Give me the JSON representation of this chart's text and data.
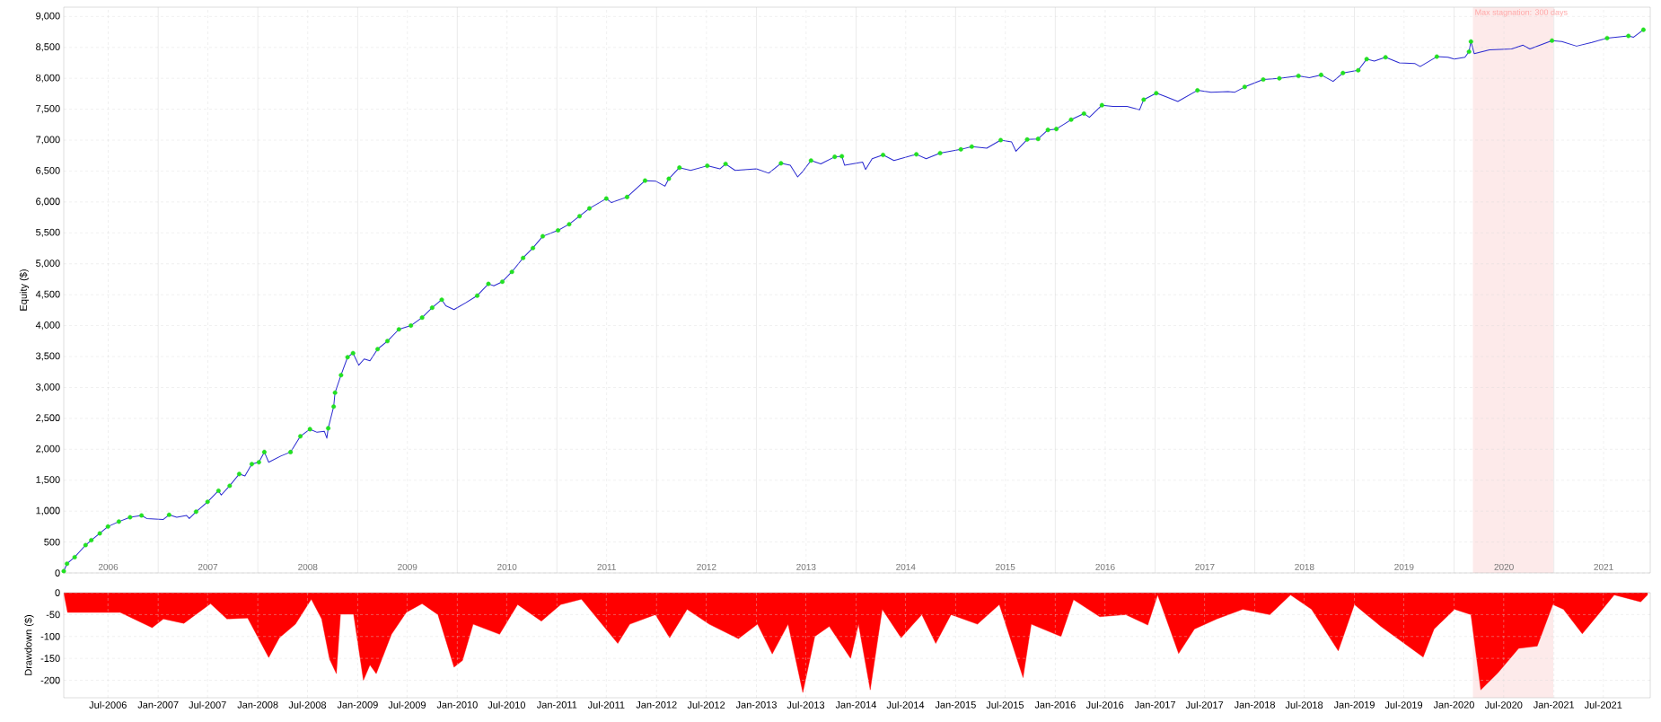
{
  "chart_data": [
    {
      "type": "line",
      "ylabel": "Equity ($)",
      "grid": true,
      "xlim": [
        "2006-01-20",
        "2021-12-20"
      ],
      "ylim": [
        0,
        9150
      ],
      "xticks": [
        {
          "value": "2006-07-02",
          "label": "2006"
        },
        {
          "value": "2007-07-02",
          "label": "2007"
        },
        {
          "value": "2008-07-02",
          "label": "2008"
        },
        {
          "value": "2009-07-02",
          "label": "2009"
        },
        {
          "value": "2010-07-02",
          "label": "2010"
        },
        {
          "value": "2011-07-02",
          "label": "2011"
        },
        {
          "value": "2012-07-02",
          "label": "2012"
        },
        {
          "value": "2013-07-02",
          "label": "2013"
        },
        {
          "value": "2014-07-02",
          "label": "2014"
        },
        {
          "value": "2015-07-02",
          "label": "2015"
        },
        {
          "value": "2016-07-02",
          "label": "2016"
        },
        {
          "value": "2017-07-02",
          "label": "2017"
        },
        {
          "value": "2018-07-02",
          "label": "2018"
        },
        {
          "value": "2019-07-02",
          "label": "2019"
        },
        {
          "value": "2020-07-02",
          "label": "2020"
        },
        {
          "value": "2021-07-02",
          "label": "2021"
        },
        {
          "value": "2007-01-01",
          "label": null
        },
        {
          "value": "2008-01-01",
          "label": null
        },
        {
          "value": "2009-01-01",
          "label": null
        },
        {
          "value": "2010-01-01",
          "label": null
        },
        {
          "value": "2011-01-01",
          "label": null
        },
        {
          "value": "2012-01-01",
          "label": null
        },
        {
          "value": "2013-01-01",
          "label": null
        },
        {
          "value": "2014-01-01",
          "label": null
        },
        {
          "value": "2015-01-01",
          "label": null
        },
        {
          "value": "2016-01-01",
          "label": null
        },
        {
          "value": "2017-01-01",
          "label": null
        },
        {
          "value": "2018-01-01",
          "label": null
        },
        {
          "value": "2019-01-01",
          "label": null
        },
        {
          "value": "2020-01-01",
          "label": null
        },
        {
          "value": "2021-01-01",
          "label": null
        }
      ],
      "yticks": [
        0,
        500,
        {
          "value": 1000,
          "label": "1,000"
        },
        {
          "value": 1500,
          "label": "1,500"
        },
        {
          "value": 2000,
          "label": "2,000"
        },
        {
          "value": 2500,
          "label": "2,500"
        },
        {
          "value": 3000,
          "label": "3,000"
        },
        {
          "value": 3500,
          "label": "3,500"
        },
        {
          "value": 4000,
          "label": "4,000"
        },
        {
          "value": 4500,
          "label": "4,500"
        },
        {
          "value": 5000,
          "label": "5,000"
        },
        {
          "value": 5500,
          "label": "5,500"
        },
        {
          "value": 6000,
          "label": "6,000"
        },
        {
          "value": 6500,
          "label": "6,500"
        },
        {
          "value": 7000,
          "label": "7,000"
        },
        {
          "value": 7500,
          "label": "7,500"
        },
        {
          "value": 8000,
          "label": "8,000"
        },
        {
          "value": 8500,
          "label": "8,500"
        },
        {
          "value": 9000,
          "label": "9,000"
        }
      ],
      "bands": [
        {
          "axis": "x",
          "from": "2020-03-10",
          "to": "2020-12-30",
          "label": "Max stagnation: 300 days",
          "color": "#fdeaea"
        }
      ],
      "series": [
        {
          "color": "#2a2ad0",
          "x": [
            "2006-01-20",
            "2006-02-01",
            "2006-03-01",
            "2006-04-10",
            "2006-05-01",
            "2006-06-01",
            "2006-07-01",
            "2006-08-10",
            "2006-09-20",
            "2006-11-01",
            "2006-11-20",
            "2007-01-20",
            "2007-02-10",
            "2007-03-10",
            "2007-04-15",
            "2007-04-25",
            "2007-05-20",
            "2007-07-01",
            "2007-08-10",
            "2007-08-20",
            "2007-09-20",
            "2007-10-25",
            "2007-11-15",
            "2007-12-10",
            "2008-01-05",
            "2008-01-25",
            "2008-02-10",
            "2008-03-25",
            "2008-04-30",
            "2008-06-05",
            "2008-07-10",
            "2008-08-05",
            "2008-09-01",
            "2008-09-10",
            "2008-09-15",
            "2008-10-05",
            "2008-10-10",
            "2008-11-01",
            "2008-11-25",
            "2008-12-15",
            "2009-01-05",
            "2009-01-25",
            "2009-02-15",
            "2009-03-15",
            "2009-04-20",
            "2009-06-01",
            "2009-07-15",
            "2009-08-25",
            "2009-10-01",
            "2009-11-05",
            "2009-11-20",
            "2009-12-20",
            "2010-02-01",
            "2010-03-15",
            "2010-04-25",
            "2010-05-15",
            "2010-06-15",
            "2010-07-20",
            "2010-08-30",
            "2010-10-05",
            "2010-11-10",
            "2011-01-05",
            "2011-02-15",
            "2011-03-25",
            "2011-04-30",
            "2011-07-01",
            "2011-07-20",
            "2011-08-08",
            "2011-09-15",
            "2011-11-20",
            "2011-12-30",
            "2012-02-01",
            "2012-02-15",
            "2012-03-25",
            "2012-05-05",
            "2012-07-05",
            "2012-08-20",
            "2012-09-10",
            "2012-10-15",
            "2013-01-01",
            "2013-02-15",
            "2013-04-01",
            "2013-05-05",
            "2013-06-01",
            "2013-06-20",
            "2013-07-20",
            "2013-08-25",
            "2013-10-15",
            "2013-11-10",
            "2013-11-20",
            "2014-01-25",
            "2014-02-05",
            "2014-03-01",
            "2014-04-10",
            "2014-05-20",
            "2014-08-10",
            "2014-09-15",
            "2014-11-05",
            "2015-01-20",
            "2015-03-01",
            "2015-04-25",
            "2015-06-15",
            "2015-07-25",
            "2015-08-10",
            "2015-09-20",
            "2015-10-30",
            "2015-12-05",
            "2016-01-05",
            "2016-02-28",
            "2016-04-15",
            "2016-05-05",
            "2016-06-20",
            "2016-07-30",
            "2016-09-20",
            "2016-11-05",
            "2016-11-20",
            "2017-01-05",
            "2017-01-15",
            "2017-02-10",
            "2017-03-25",
            "2017-06-05",
            "2017-07-25",
            "2017-09-25",
            "2017-10-20",
            "2017-11-25",
            "2018-02-01",
            "2018-04-01",
            "2018-06-10",
            "2018-07-20",
            "2018-09-01",
            "2018-10-15",
            "2018-11-20",
            "2019-01-15",
            "2019-02-15",
            "2019-03-15",
            "2019-04-25",
            "2019-06-15",
            "2019-08-10",
            "2019-08-30",
            "2019-10-30",
            "2019-12-10",
            "2020-01-02",
            "2020-02-10",
            "2020-02-25",
            "2020-03-03",
            "2020-03-15",
            "2020-05-10",
            "2020-07-30",
            "2020-09-10",
            "2020-10-05",
            "2020-12-25",
            "2021-01-30",
            "2021-03-25",
            "2021-05-20",
            "2021-07-15",
            "2021-10-01",
            "2021-10-20",
            "2021-11-25"
          ],
          "values": [
            30,
            150,
            255,
            450,
            530,
            640,
            750,
            830,
            900,
            930,
            880,
            865,
            940,
            900,
            930,
            880,
            990,
            1150,
            1330,
            1260,
            1410,
            1600,
            1570,
            1760,
            1790,
            1955,
            1790,
            1890,
            1955,
            2210,
            2325,
            2275,
            2290,
            2180,
            2340,
            2690,
            2915,
            3200,
            3490,
            3555,
            3360,
            3460,
            3430,
            3620,
            3750,
            3940,
            4000,
            4130,
            4290,
            4420,
            4320,
            4260,
            4370,
            4485,
            4675,
            4645,
            4710,
            4870,
            5095,
            5255,
            5445,
            5540,
            5640,
            5770,
            5895,
            6055,
            5990,
            6020,
            6080,
            6345,
            6335,
            6255,
            6375,
            6555,
            6510,
            6585,
            6535,
            6615,
            6510,
            6535,
            6465,
            6625,
            6595,
            6405,
            6495,
            6670,
            6615,
            6730,
            6740,
            6595,
            6645,
            6525,
            6700,
            6760,
            6670,
            6770,
            6700,
            6790,
            6850,
            6895,
            6870,
            7000,
            6970,
            6820,
            7010,
            7020,
            7165,
            7180,
            7330,
            7430,
            7370,
            7565,
            7545,
            7545,
            7490,
            7655,
            7760,
            7745,
            7700,
            7625,
            7805,
            7775,
            7785,
            7775,
            7860,
            7980,
            8000,
            8040,
            8010,
            8055,
            7950,
            8085,
            8130,
            8310,
            8280,
            8340,
            8250,
            8240,
            8190,
            8350,
            8340,
            8310,
            8340,
            8430,
            8595,
            8400,
            8460,
            8475,
            8535,
            8475,
            8610,
            8595,
            8520,
            8580,
            8650,
            8685,
            8665,
            8785
          ]
        },
        {
          "type": "scatter",
          "marker": "circle",
          "color": "#22e022",
          "x": [
            "2006-01-20",
            "2006-02-01",
            "2006-03-01",
            "2006-04-10",
            "2006-05-01",
            "2006-06-01",
            "2006-07-01",
            "2006-08-10",
            "2006-09-20",
            "2006-11-01",
            "2007-02-10",
            "2007-05-20",
            "2007-07-01",
            "2007-08-10",
            "2007-09-20",
            "2007-10-25",
            "2007-12-10",
            "2008-01-05",
            "2008-01-25",
            "2008-04-30",
            "2008-06-05",
            "2008-07-10",
            "2008-09-15",
            "2008-10-05",
            "2008-10-10",
            "2008-11-01",
            "2008-11-25",
            "2008-12-15",
            "2009-03-15",
            "2009-04-20",
            "2009-06-01",
            "2009-07-15",
            "2009-08-25",
            "2009-10-01",
            "2009-11-05",
            "2010-03-15",
            "2010-04-25",
            "2010-06-15",
            "2010-07-20",
            "2010-08-30",
            "2010-10-05",
            "2010-11-10",
            "2011-01-05",
            "2011-02-15",
            "2011-03-25",
            "2011-04-30",
            "2011-07-01",
            "2011-09-15",
            "2011-11-20",
            "2012-02-15",
            "2012-03-25",
            "2012-07-05",
            "2012-09-10",
            "2013-04-01",
            "2013-07-20",
            "2013-10-15",
            "2013-11-10",
            "2014-04-10",
            "2014-08-10",
            "2014-11-05",
            "2015-01-20",
            "2015-03-01",
            "2015-06-15",
            "2015-09-20",
            "2015-10-30",
            "2015-12-05",
            "2016-01-05",
            "2016-02-28",
            "2016-04-15",
            "2016-06-20",
            "2016-11-20",
            "2017-01-05",
            "2017-06-05",
            "2017-11-25",
            "2018-02-01",
            "2018-04-01",
            "2018-06-10",
            "2018-09-01",
            "2018-11-20",
            "2019-01-15",
            "2019-02-15",
            "2019-04-25",
            "2019-10-30",
            "2020-02-25",
            "2020-03-03",
            "2020-12-25",
            "2021-07-15",
            "2021-10-01",
            "2021-11-25"
          ],
          "values": [
            30,
            150,
            255,
            450,
            530,
            640,
            750,
            830,
            900,
            930,
            940,
            990,
            1150,
            1330,
            1410,
            1600,
            1760,
            1790,
            1955,
            1955,
            2210,
            2325,
            2340,
            2690,
            2915,
            3200,
            3490,
            3555,
            3620,
            3750,
            3940,
            4000,
            4130,
            4290,
            4420,
            4485,
            4675,
            4710,
            4870,
            5095,
            5255,
            5445,
            5540,
            5640,
            5770,
            5895,
            6055,
            6080,
            6345,
            6375,
            6555,
            6585,
            6615,
            6625,
            6670,
            6730,
            6740,
            6760,
            6770,
            6790,
            6850,
            6895,
            7000,
            7010,
            7020,
            7165,
            7180,
            7330,
            7430,
            7565,
            7655,
            7760,
            7805,
            7860,
            7980,
            8000,
            8040,
            8055,
            8085,
            8130,
            8310,
            8340,
            8350,
            8430,
            8595,
            8610,
            8650,
            8685,
            8785
          ]
        }
      ]
    },
    {
      "type": "area",
      "ylabel": "Drawdown ($)",
      "grid": true,
      "xlim": [
        "2006-01-20",
        "2021-12-20"
      ],
      "ylim": [
        -240,
        0
      ],
      "xticks": [
        {
          "value": "2006-07-01",
          "label": "Jul-2006"
        },
        {
          "value": "2007-01-01",
          "label": "Jan-2007"
        },
        {
          "value": "2007-07-01",
          "label": "Jul-2007"
        },
        {
          "value": "2008-01-01",
          "label": "Jan-2008"
        },
        {
          "value": "2008-07-01",
          "label": "Jul-2008"
        },
        {
          "value": "2009-01-01",
          "label": "Jan-2009"
        },
        {
          "value": "2009-07-01",
          "label": "Jul-2009"
        },
        {
          "value": "2010-01-01",
          "label": "Jan-2010"
        },
        {
          "value": "2010-07-01",
          "label": "Jul-2010"
        },
        {
          "value": "2011-01-01",
          "label": "Jan-2011"
        },
        {
          "value": "2011-07-01",
          "label": "Jul-2011"
        },
        {
          "value": "2012-01-01",
          "label": "Jan-2012"
        },
        {
          "value": "2012-07-01",
          "label": "Jul-2012"
        },
        {
          "value": "2013-01-01",
          "label": "Jan-2013"
        },
        {
          "value": "2013-07-01",
          "label": "Jul-2013"
        },
        {
          "value": "2014-01-01",
          "label": "Jan-2014"
        },
        {
          "value": "2014-07-01",
          "label": "Jul-2014"
        },
        {
          "value": "2015-01-01",
          "label": "Jan-2015"
        },
        {
          "value": "2015-07-01",
          "label": "Jul-2015"
        },
        {
          "value": "2016-01-01",
          "label": "Jan-2016"
        },
        {
          "value": "2016-07-01",
          "label": "Jul-2016"
        },
        {
          "value": "2017-01-01",
          "label": "Jan-2017"
        },
        {
          "value": "2017-07-01",
          "label": "Jul-2017"
        },
        {
          "value": "2018-01-01",
          "label": "Jan-2018"
        },
        {
          "value": "2018-07-01",
          "label": "Jul-2018"
        },
        {
          "value": "2019-01-01",
          "label": "Jan-2019"
        },
        {
          "value": "2019-07-01",
          "label": "Jul-2019"
        },
        {
          "value": "2020-01-01",
          "label": "Jan-2020"
        },
        {
          "value": "2020-07-01",
          "label": "Jul-2020"
        },
        {
          "value": "2021-01-01",
          "label": "Jan-2021"
        },
        {
          "value": "2021-07-01",
          "label": "Jul-2021"
        }
      ],
      "yticks": [
        -200,
        -150,
        -100,
        -50,
        0
      ],
      "bands": [
        {
          "axis": "x",
          "from": "2020-03-10",
          "to": "2020-12-30",
          "color": "#fdeaea"
        }
      ],
      "series": [
        {
          "color": "#ff0000",
          "x": [
            "2006-01-20",
            "2006-02-03",
            "2006-08-15",
            "2006-12-10",
            "2007-01-20",
            "2007-04-05",
            "2007-07-12",
            "2007-09-10",
            "2007-11-25",
            "2008-02-10",
            "2008-03-20",
            "2008-05-18",
            "2008-07-15",
            "2008-08-22",
            "2008-09-20",
            "2008-10-15",
            "2008-10-30",
            "2008-12-17",
            "2009-01-22",
            "2009-02-15",
            "2009-03-10",
            "2009-05-05",
            "2009-06-28",
            "2009-08-25",
            "2009-10-22",
            "2009-12-20",
            "2010-01-20",
            "2010-02-28",
            "2010-06-05",
            "2010-08-10",
            "2010-11-05",
            "2011-01-15",
            "2011-04-01",
            "2011-08-12",
            "2011-09-25",
            "2011-12-28",
            "2012-02-18",
            "2012-04-22",
            "2012-07-12",
            "2012-10-27",
            "2013-01-05",
            "2013-02-28",
            "2013-04-27",
            "2013-06-20",
            "2013-08-03",
            "2013-09-25",
            "2013-12-12",
            "2014-01-10",
            "2014-02-22",
            "2014-04-07",
            "2014-06-15",
            "2014-08-30",
            "2014-10-20",
            "2014-12-15",
            "2015-03-22",
            "2015-06-10",
            "2015-09-05",
            "2015-10-05",
            "2016-01-22",
            "2016-03-08",
            "2016-06-12",
            "2016-09-15",
            "2016-12-05",
            "2017-01-10",
            "2017-03-28",
            "2017-05-25",
            "2017-08-15",
            "2017-11-18",
            "2018-02-25",
            "2018-05-12",
            "2018-07-28",
            "2018-11-03",
            "2019-01-01",
            "2019-04-08",
            "2019-09-10",
            "2019-10-20",
            "2020-01-03",
            "2020-03-03",
            "2020-04-08",
            "2020-06-10",
            "2020-08-25",
            "2020-11-01",
            "2020-12-28",
            "2021-02-05",
            "2021-04-15",
            "2021-06-12",
            "2021-08-10",
            "2021-11-15",
            "2021-12-10"
          ],
          "values": [
            0,
            -45,
            -45,
            -80,
            -60,
            -70,
            -25,
            -60,
            -58,
            -148,
            -103,
            -72,
            -15,
            -60,
            -152,
            -185,
            -49,
            -49,
            -200,
            -165,
            -185,
            -95,
            -45,
            -25,
            -50,
            -170,
            -155,
            -72,
            -95,
            -27,
            -65,
            -27,
            -15,
            -116,
            -72,
            -50,
            -103,
            -38,
            -72,
            -105,
            -72,
            -140,
            -72,
            -228,
            -100,
            -77,
            -150,
            -72,
            -222,
            -38,
            -103,
            -50,
            -116,
            -50,
            -72,
            -27,
            -194,
            -72,
            -100,
            -16,
            -55,
            -50,
            -74,
            -5,
            -139,
            -83,
            -60,
            -38,
            -50,
            -5,
            -38,
            -133,
            -27,
            -77,
            -147,
            -83,
            -38,
            -50,
            -222,
            -183,
            -127,
            -122,
            -27,
            -38,
            -94,
            -50,
            -5,
            -21,
            -5
          ]
        }
      ]
    }
  ]
}
